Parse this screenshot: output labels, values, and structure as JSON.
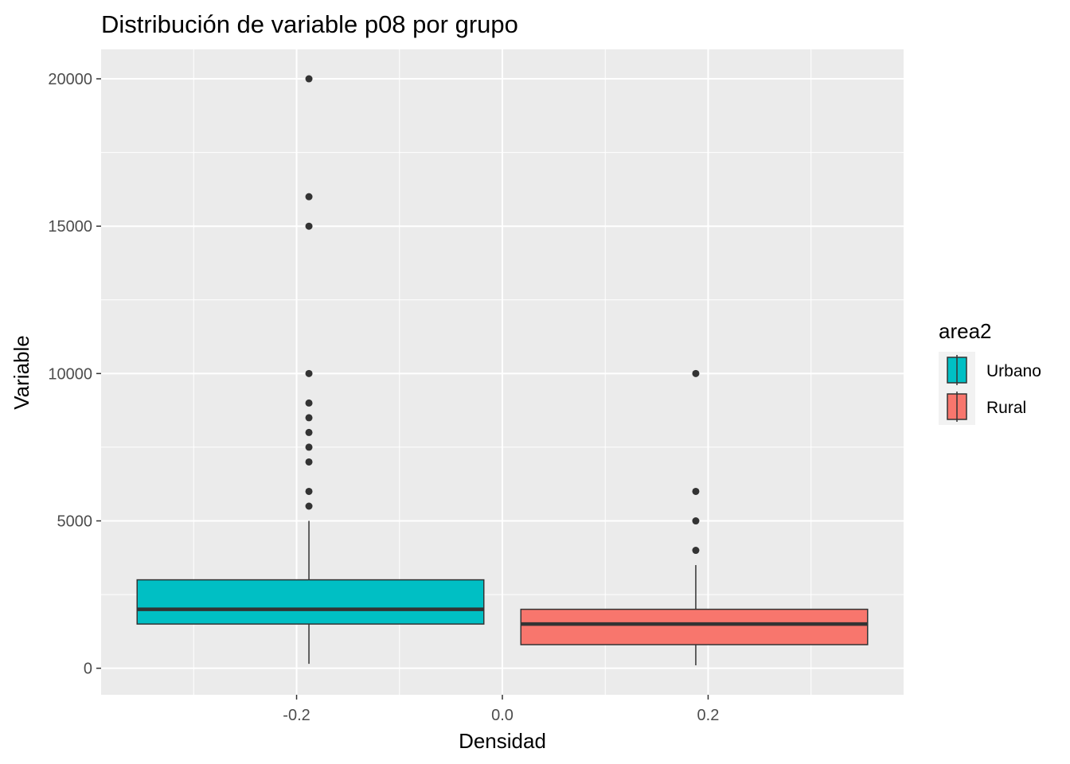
{
  "chart_data": {
    "type": "boxplot",
    "title": "Distribución de variable p08 por grupo",
    "xlabel": "Densidad",
    "ylabel": "Variable",
    "xlim": [
      -0.39,
      0.39
    ],
    "ylim": [
      -900,
      21000
    ],
    "x_ticks": [
      {
        "value": -0.2,
        "label": "-0.2"
      },
      {
        "value": 0.0,
        "label": "0.0"
      },
      {
        "value": 0.2,
        "label": "0.2"
      }
    ],
    "y_ticks": [
      {
        "value": 0,
        "label": "0"
      },
      {
        "value": 5000,
        "label": "5000"
      },
      {
        "value": 10000,
        "label": "10000"
      },
      {
        "value": 15000,
        "label": "15000"
      },
      {
        "value": 20000,
        "label": "20000"
      }
    ],
    "grid": true,
    "legend": {
      "title": "area2",
      "position": "right",
      "entries": [
        {
          "label": "Urbano",
          "color": "#00BFC4"
        },
        {
          "label": "Rural",
          "color": "#F8766D"
        }
      ]
    },
    "series": [
      {
        "name": "Urbano",
        "color": "#00BFC4",
        "x_range": [
          -0.355,
          -0.018
        ],
        "whisker_x": -0.188,
        "min": 150,
        "q1": 1500,
        "median": 2000,
        "q3": 3000,
        "max": 5000,
        "outliers": [
          5500,
          6000,
          7000,
          7500,
          8000,
          8500,
          9000,
          10000,
          15000,
          16000,
          20000
        ]
      },
      {
        "name": "Rural",
        "color": "#F8766D",
        "x_range": [
          0.018,
          0.355
        ],
        "whisker_x": 0.188,
        "min": 100,
        "q1": 800,
        "median": 1500,
        "q3": 2000,
        "max": 3500,
        "outliers": [
          4000,
          5000,
          6000,
          10000
        ]
      }
    ]
  }
}
